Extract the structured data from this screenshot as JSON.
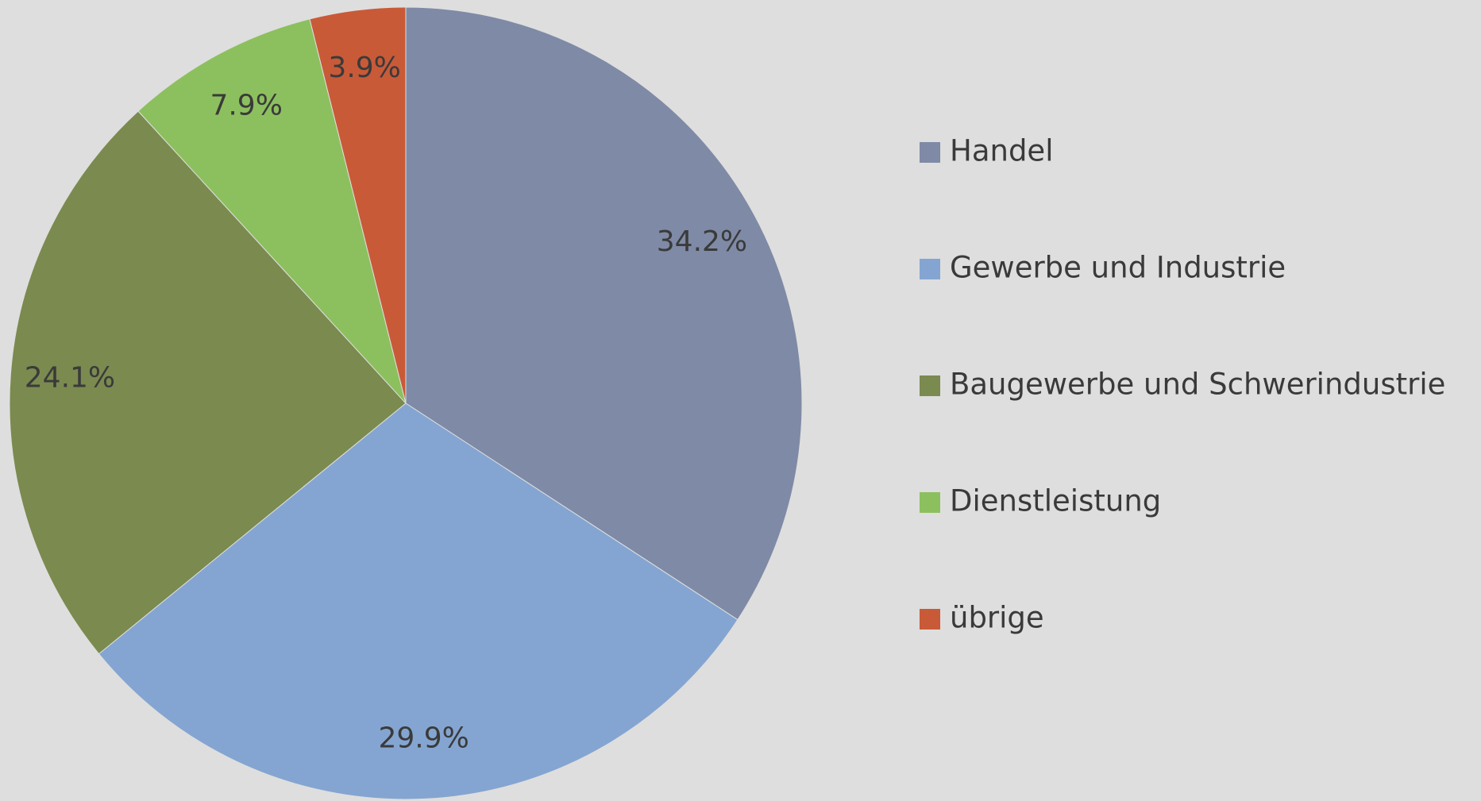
{
  "chart_data": {
    "type": "pie",
    "categories": [
      "Handel",
      "Gewerbe und Industrie",
      "Baugewerbe und Schwerindustrie",
      "Dienstleistung",
      "übrige"
    ],
    "values": [
      34.2,
      29.9,
      24.1,
      7.9,
      3.9
    ],
    "value_labels": [
      "34.2%",
      "29.9%",
      "24.1%",
      "7.9%",
      "3.9%"
    ],
    "colors": [
      "#7f8aa6",
      "#84a5d1",
      "#7b8a4f",
      "#8cc05e",
      "#c95a38"
    ],
    "legend": "right"
  }
}
